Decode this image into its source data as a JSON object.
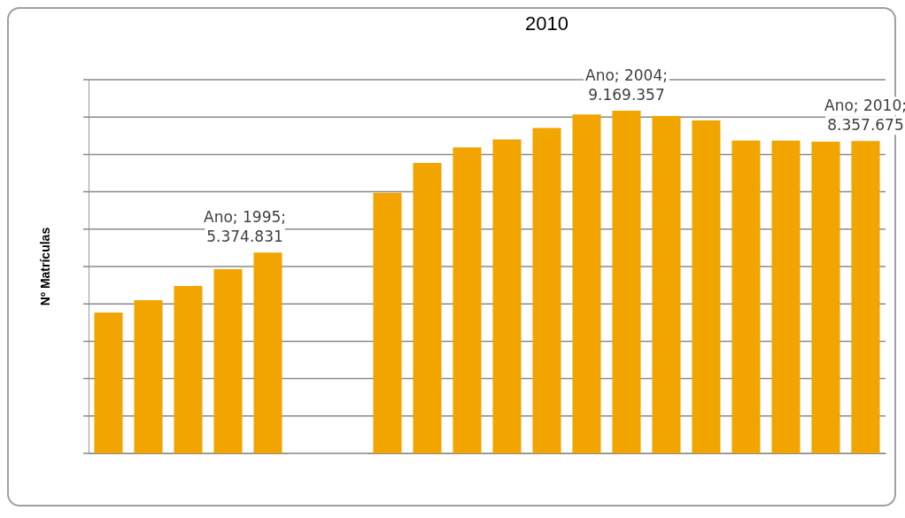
{
  "chart_data": [
    {
      "type": "bar",
      "ylabel": "Nº Matrículas",
      "categories": [
        null,
        null,
        null,
        null,
        null
      ],
      "values": [
        3770000,
        4100000,
        4480000,
        4930000,
        5374831
      ],
      "value_labels": [
        null,
        null,
        null,
        null,
        "Ano; 1995; 5.374.831"
      ],
      "color": "#f2a400",
      "ylim": [
        0,
        10000000
      ],
      "yticks": [
        {
          "value": 0,
          "label": null
        },
        {
          "value": 1000000,
          "label": null
        },
        {
          "value": 2000000,
          "label": null
        },
        {
          "value": 3000000,
          "label": null
        },
        {
          "value": 4000000,
          "label": null
        },
        {
          "value": 5000000,
          "label": null
        },
        {
          "value": 6000000,
          "label": null
        },
        {
          "value": 7000000,
          "label": null
        },
        {
          "value": 8000000,
          "label": null
        },
        {
          "value": 9000000,
          "label": null
        },
        {
          "value": 10000000,
          "label": null
        }
      ],
      "grid": "y",
      "legend": false
    },
    {
      "type": "bar",
      "title": "2010",
      "categories": [
        null,
        null,
        null,
        null,
        null,
        null,
        null,
        null,
        null,
        null,
        null,
        null,
        null
      ],
      "values": [
        6970000,
        7770000,
        8190000,
        8400000,
        8710000,
        9070000,
        9169357,
        9030000,
        8910000,
        8370000,
        8370000,
        8340000,
        8357675
      ],
      "value_labels": [
        null,
        null,
        null,
        null,
        null,
        null,
        "Ano; 2004; 9.169.357",
        null,
        null,
        null,
        null,
        null,
        "Ano; 2010; 8.357.675"
      ],
      "color": "#f2a400",
      "ylim": [
        0,
        10000000
      ],
      "yticks": [
        {
          "value": 0,
          "label": null
        },
        {
          "value": 1000000,
          "label": null
        },
        {
          "value": 2000000,
          "label": null
        },
        {
          "value": 3000000,
          "label": null
        },
        {
          "value": 4000000,
          "label": null
        },
        {
          "value": 5000000,
          "label": null
        },
        {
          "value": 6000000,
          "label": null
        },
        {
          "value": 7000000,
          "label": null
        },
        {
          "value": 8000000,
          "label": null
        },
        {
          "value": 9000000,
          "label": null
        },
        {
          "value": 10000000,
          "label": null
        }
      ],
      "grid": "y",
      "legend": false
    }
  ]
}
